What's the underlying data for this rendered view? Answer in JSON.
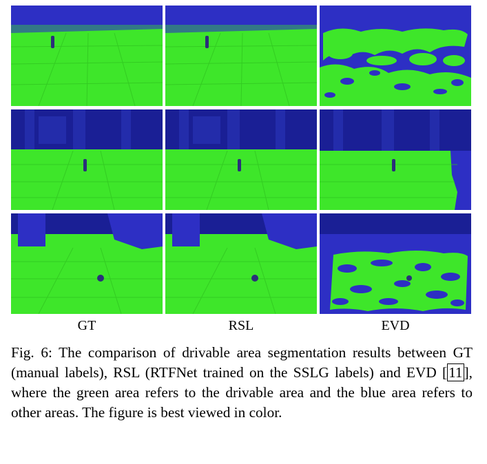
{
  "columns": [
    {
      "label": "GT"
    },
    {
      "label": "RSL"
    },
    {
      "label": "EVD"
    }
  ],
  "colors": {
    "drivable": "#3ee62a",
    "other": "#2d2fc4",
    "wall": "#1a1f95"
  },
  "caption": {
    "prefix": "Fig. 6:",
    "text_1": "The comparison of drivable area segmentation results between GT (manual labels), RSL (RTFNet trained on the SSLG labels) and EVD [",
    "ref": "11",
    "text_2": "], where the green area refers to the drivable area and the blue area refers to other areas. The figure is best viewed in color."
  }
}
